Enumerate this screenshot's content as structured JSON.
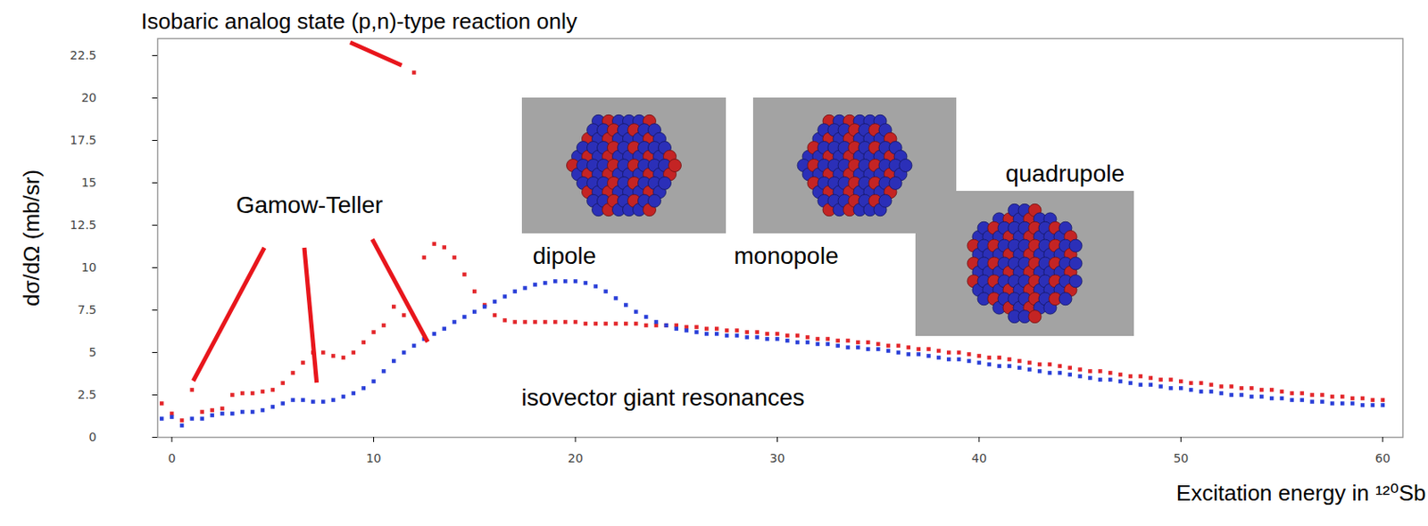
{
  "chart_data": {
    "type": "scatter",
    "xlabel": "Excitation energy in ¹²⁰Sb",
    "ylabel": "dσ/dΩ (mb/sr)",
    "marker": "square",
    "grid": false,
    "xlim": [
      -0.7,
      61
    ],
    "ylim": [
      0,
      23.5
    ],
    "xticks": [
      0,
      10,
      20,
      30,
      40,
      50,
      60
    ],
    "yticks": [
      0,
      2.5,
      5,
      7.5,
      10,
      12.5,
      15,
      17.5,
      20,
      22.5
    ],
    "annotations": [
      "Isobaric analog state (p,n)-type reaction only",
      "Gamow-Teller",
      "dipole",
      "monopole",
      "quadrupole",
      "isovector giant resonances"
    ],
    "x": [
      -0.5,
      0,
      0.5,
      1,
      1.5,
      2,
      2.5,
      3,
      3.5,
      4,
      4.5,
      5,
      5.5,
      6,
      6.5,
      7,
      7.5,
      8,
      8.5,
      9,
      9.5,
      10,
      10.5,
      11,
      11.5,
      12,
      12.5,
      13,
      13.5,
      14,
      14.5,
      15,
      15.5,
      16,
      16.5,
      17,
      17.5,
      18,
      18.5,
      19,
      19.5,
      20,
      20.5,
      21,
      21.5,
      22,
      22.5,
      23,
      23.5,
      24,
      24.5,
      25,
      25.5,
      26,
      26.5,
      27,
      27.5,
      28,
      28.5,
      29,
      29.5,
      30,
      30.5,
      31,
      31.5,
      32,
      32.5,
      33,
      33.5,
      34,
      34.5,
      35,
      35.5,
      36,
      36.5,
      37,
      37.5,
      38,
      38.5,
      39,
      39.5,
      40,
      40.5,
      41,
      41.5,
      42,
      42.5,
      43,
      43.5,
      44,
      44.5,
      45,
      45.5,
      46,
      46.5,
      47,
      47.5,
      48,
      48.5,
      49,
      49.5,
      50,
      50.5,
      51,
      51.5,
      52,
      52.5,
      53,
      53.5,
      54,
      54.5,
      55,
      55.5,
      56,
      56.5,
      57,
      57.5,
      58,
      58.5,
      59,
      59.5,
      60
    ],
    "series": [
      {
        "color": "#e3262a",
        "values": [
          2.0,
          1.4,
          1.0,
          2.8,
          1.5,
          1.6,
          1.7,
          2.5,
          2.6,
          2.6,
          2.7,
          2.8,
          3.2,
          3.8,
          4.4,
          5.0,
          5.0,
          4.8,
          4.7,
          5.0,
          5.6,
          6.2,
          6.6,
          7.7,
          7.2,
          21.5,
          10.6,
          11.4,
          11.2,
          10.6,
          9.6,
          8.6,
          7.8,
          7.2,
          6.9,
          6.8,
          6.8,
          6.8,
          6.8,
          6.8,
          6.8,
          6.8,
          6.7,
          6.7,
          6.7,
          6.7,
          6.7,
          6.7,
          6.6,
          6.6,
          6.6,
          6.6,
          6.5,
          6.5,
          6.4,
          6.4,
          6.3,
          6.3,
          6.2,
          6.2,
          6.1,
          6.1,
          6.0,
          6.0,
          5.9,
          5.8,
          5.8,
          5.7,
          5.7,
          5.6,
          5.6,
          5.5,
          5.4,
          5.4,
          5.3,
          5.2,
          5.2,
          5.1,
          5.0,
          5.0,
          4.9,
          4.8,
          4.7,
          4.7,
          4.6,
          4.5,
          4.4,
          4.3,
          4.3,
          4.2,
          4.1,
          4.0,
          3.9,
          3.9,
          3.8,
          3.7,
          3.6,
          3.6,
          3.5,
          3.4,
          3.4,
          3.3,
          3.2,
          3.2,
          3.1,
          3.0,
          3.0,
          2.9,
          2.9,
          2.8,
          2.8,
          2.7,
          2.6,
          2.6,
          2.5,
          2.5,
          2.4,
          2.4,
          2.3,
          2.3,
          2.2,
          2.2
        ]
      },
      {
        "color": "#2a3fd8",
        "values": [
          1.1,
          1.2,
          0.7,
          1.1,
          1.1,
          1.3,
          1.4,
          1.4,
          1.5,
          1.5,
          1.6,
          1.8,
          2.0,
          2.2,
          2.2,
          2.1,
          2.1,
          2.2,
          2.4,
          2.6,
          2.9,
          3.3,
          3.9,
          4.5,
          5.0,
          5.4,
          5.8,
          6.1,
          6.4,
          6.8,
          7.1,
          7.4,
          7.7,
          8.0,
          8.3,
          8.6,
          8.8,
          9.0,
          9.1,
          9.2,
          9.2,
          9.2,
          9.1,
          8.9,
          8.6,
          8.2,
          7.8,
          7.4,
          7.1,
          6.8,
          6.6,
          6.4,
          6.3,
          6.2,
          6.1,
          6.1,
          6.0,
          6.0,
          5.9,
          5.9,
          5.8,
          5.8,
          5.7,
          5.6,
          5.6,
          5.5,
          5.5,
          5.4,
          5.3,
          5.3,
          5.2,
          5.2,
          5.1,
          5.0,
          4.9,
          4.9,
          4.8,
          4.7,
          4.6,
          4.6,
          4.5,
          4.4,
          4.3,
          4.2,
          4.2,
          4.1,
          4.0,
          3.9,
          3.8,
          3.8,
          3.7,
          3.6,
          3.5,
          3.4,
          3.4,
          3.3,
          3.2,
          3.1,
          3.1,
          3.0,
          2.9,
          2.9,
          2.8,
          2.7,
          2.7,
          2.6,
          2.5,
          2.5,
          2.4,
          2.4,
          2.3,
          2.3,
          2.2,
          2.2,
          2.1,
          2.1,
          2.0,
          2.0,
          2.0,
          1.9,
          1.9,
          1.9
        ]
      }
    ]
  }
}
